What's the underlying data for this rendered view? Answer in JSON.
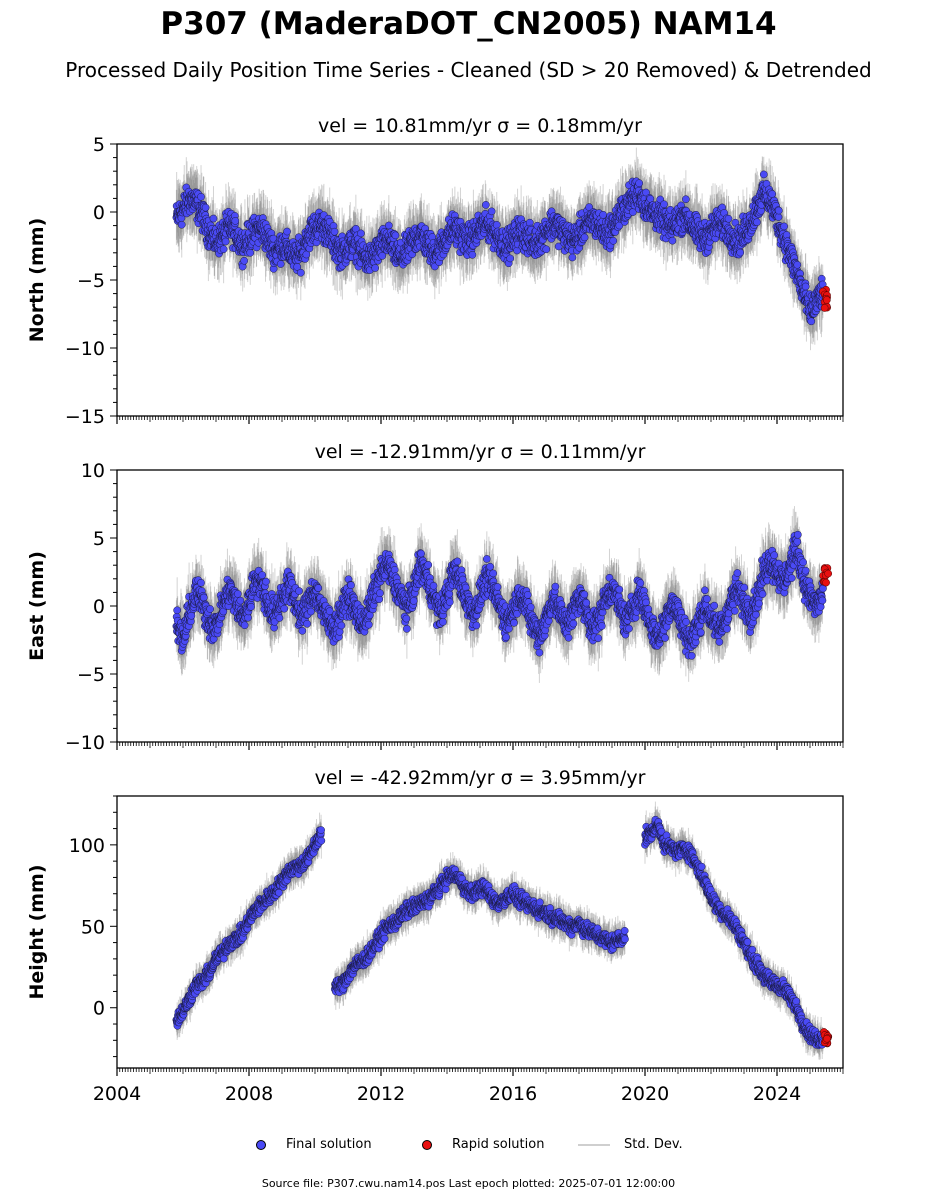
{
  "figure": {
    "title": "P307 (MaderaDOT_CN2005) NAM14",
    "subtitle": "Processed Daily Position Time Series - Cleaned (SD > 20 Removed) & Detrended",
    "footer": "Source file: P307.cwu.nam14.pos  Last epoch plotted: 2025-07-01 12:00:00"
  },
  "legend": {
    "final": "Final solution",
    "rapid": "Rapid solution",
    "std": "Std. Dev."
  },
  "colors": {
    "final": "#4a4af5",
    "rapid": "#e81010",
    "std": "#808080"
  },
  "chart_data": [
    {
      "type": "scatter",
      "title": "vel = 10.81mm/yr   σ = 0.18mm/yr",
      "ylabel": "North (mm)",
      "xlim": [
        2004.0,
        2026.0
      ],
      "ylim": [
        -15,
        5
      ],
      "yticks": [
        -15,
        -10,
        -5,
        0,
        5
      ],
      "xticks": [
        2004,
        2008,
        2012,
        2016,
        2020,
        2024
      ],
      "xtick_labels": [],
      "series": [
        {
          "name": "Final solution",
          "x": [
            2005.8,
            2006.0,
            2006.2,
            2006.4,
            2006.6,
            2006.8,
            2007.0,
            2007.2,
            2007.4,
            2007.6,
            2007.8,
            2008.0,
            2008.2,
            2008.4,
            2008.6,
            2008.8,
            2009.0,
            2009.2,
            2009.4,
            2009.6,
            2009.8,
            2010.0,
            2010.2,
            2010.4,
            2010.6,
            2010.8,
            2011.0,
            2011.2,
            2011.4,
            2011.6,
            2011.8,
            2012.0,
            2012.2,
            2012.4,
            2012.6,
            2012.8,
            2013.0,
            2013.2,
            2013.4,
            2013.6,
            2013.8,
            2014.0,
            2014.2,
            2014.4,
            2014.6,
            2014.8,
            2015.0,
            2015.2,
            2015.4,
            2015.6,
            2015.8,
            2016.0,
            2016.2,
            2016.4,
            2016.6,
            2016.8,
            2017.0,
            2017.2,
            2017.4,
            2017.6,
            2017.8,
            2018.0,
            2018.2,
            2018.4,
            2018.6,
            2018.8,
            2019.0,
            2019.2,
            2019.4,
            2019.6,
            2019.8,
            2020.0,
            2020.2,
            2020.4,
            2020.6,
            2020.8,
            2021.0,
            2021.2,
            2021.4,
            2021.6,
            2021.8,
            2022.0,
            2022.2,
            2022.4,
            2022.6,
            2022.8,
            2023.0,
            2023.2,
            2023.4,
            2023.6,
            2023.8,
            2024.0,
            2024.2,
            2024.4,
            2024.6,
            2024.8,
            2025.0,
            2025.2,
            2025.4
          ],
          "y": [
            -0.5,
            0.2,
            1.0,
            0.6,
            -0.3,
            -1.5,
            -2.2,
            -1.8,
            -1.0,
            -1.6,
            -2.5,
            -2.0,
            -1.4,
            -1.2,
            -2.2,
            -3.0,
            -2.4,
            -2.8,
            -3.4,
            -3.0,
            -1.6,
            -1.2,
            -0.9,
            -1.5,
            -2.4,
            -3.0,
            -2.6,
            -2.2,
            -3.0,
            -3.6,
            -3.2,
            -2.5,
            -2.0,
            -2.8,
            -3.4,
            -2.8,
            -2.0,
            -1.6,
            -2.4,
            -3.0,
            -2.6,
            -1.8,
            -1.2,
            -1.6,
            -2.2,
            -1.8,
            -1.2,
            -0.8,
            -1.4,
            -2.0,
            -2.6,
            -2.0,
            -1.4,
            -1.8,
            -2.4,
            -2.0,
            -1.4,
            -0.8,
            -1.2,
            -1.8,
            -2.2,
            -1.6,
            -1.0,
            -0.6,
            -1.0,
            -1.6,
            -1.2,
            -0.4,
            0.4,
            1.0,
            1.4,
            0.6,
            0.0,
            -0.2,
            -0.8,
            -1.2,
            -0.6,
            -0.2,
            -0.9,
            -1.6,
            -2.0,
            -1.4,
            -0.8,
            -1.0,
            -1.6,
            -2.2,
            -1.6,
            -0.8,
            0.4,
            1.4,
            0.8,
            -0.4,
            -1.8,
            -3.2,
            -4.4,
            -6.0,
            -7.4,
            -6.6,
            -5.8
          ]
        },
        {
          "name": "Rapid solution",
          "x": [
            2025.45,
            2025.48,
            2025.5,
            2025.52
          ],
          "y": [
            -5.8,
            -6.4,
            -7.0,
            -6.2
          ]
        }
      ]
    },
    {
      "type": "scatter",
      "title": "vel = -12.91mm/yr   σ = 0.11mm/yr",
      "ylabel": "East (mm)",
      "xlim": [
        2004.0,
        2026.0
      ],
      "ylim": [
        -10,
        10
      ],
      "yticks": [
        -10,
        -5,
        0,
        5,
        10
      ],
      "xticks": [
        2004,
        2008,
        2012,
        2016,
        2020,
        2024
      ],
      "xtick_labels": [],
      "series": [
        {
          "name": "Final solution",
          "x": [
            2005.8,
            2006.0,
            2006.2,
            2006.4,
            2006.6,
            2006.8,
            2007.0,
            2007.2,
            2007.4,
            2007.6,
            2007.8,
            2008.0,
            2008.2,
            2008.4,
            2008.6,
            2008.8,
            2009.0,
            2009.2,
            2009.4,
            2009.6,
            2009.8,
            2010.0,
            2010.2,
            2010.4,
            2010.6,
            2010.8,
            2011.0,
            2011.2,
            2011.4,
            2011.6,
            2011.8,
            2012.0,
            2012.2,
            2012.4,
            2012.6,
            2012.8,
            2013.0,
            2013.2,
            2013.4,
            2013.6,
            2013.8,
            2014.0,
            2014.2,
            2014.4,
            2014.6,
            2014.8,
            2015.0,
            2015.2,
            2015.4,
            2015.6,
            2015.8,
            2016.0,
            2016.2,
            2016.4,
            2016.6,
            2016.8,
            2017.0,
            2017.2,
            2017.4,
            2017.6,
            2017.8,
            2018.0,
            2018.2,
            2018.4,
            2018.6,
            2018.8,
            2019.0,
            2019.2,
            2019.4,
            2019.6,
            2019.8,
            2020.0,
            2020.2,
            2020.4,
            2020.6,
            2020.8,
            2021.0,
            2021.2,
            2021.4,
            2021.6,
            2021.8,
            2022.0,
            2022.2,
            2022.4,
            2022.6,
            2022.8,
            2023.0,
            2023.2,
            2023.4,
            2023.6,
            2023.8,
            2024.0,
            2024.2,
            2024.4,
            2024.6,
            2024.8,
            2025.0,
            2025.2,
            2025.4
          ],
          "y": [
            -1.5,
            -2.5,
            -0.5,
            1.0,
            0.2,
            -1.2,
            -1.6,
            0.0,
            1.2,
            0.4,
            -1.0,
            0.2,
            2.2,
            1.4,
            0.0,
            -0.6,
            0.6,
            1.6,
            0.4,
            -0.8,
            0.2,
            1.2,
            0.0,
            -1.2,
            -1.6,
            -0.4,
            0.8,
            -0.2,
            -1.4,
            -0.6,
            1.0,
            2.4,
            3.0,
            1.8,
            0.6,
            -0.2,
            1.2,
            3.2,
            2.0,
            0.6,
            -0.6,
            0.8,
            2.6,
            1.8,
            0.4,
            -0.6,
            0.6,
            2.2,
            1.2,
            0.0,
            -1.2,
            -0.4,
            1.0,
            0.0,
            -1.4,
            -2.2,
            -1.0,
            0.6,
            -0.4,
            -1.4,
            -0.6,
            0.8,
            -0.2,
            -1.6,
            -1.0,
            0.6,
            1.4,
            0.2,
            -1.2,
            -0.4,
            1.0,
            0.0,
            -1.6,
            -2.4,
            -1.2,
            0.4,
            -0.6,
            -2.0,
            -2.6,
            -1.4,
            0.0,
            -0.8,
            -1.8,
            -1.2,
            0.4,
            1.2,
            0.2,
            -0.6,
            0.6,
            2.4,
            3.4,
            2.6,
            1.6,
            3.0,
            4.4,
            2.0,
            0.6,
            0.0,
            1.0
          ]
        },
        {
          "name": "Rapid solution",
          "x": [
            2025.45,
            2025.48,
            2025.5,
            2025.52
          ],
          "y": [
            2.0,
            2.8,
            1.8,
            2.4
          ]
        }
      ]
    },
    {
      "type": "scatter",
      "title": "vel = -42.92mm/yr   σ = 3.95mm/yr",
      "ylabel": "Height (mm)",
      "xlim": [
        2004.0,
        2026.0
      ],
      "ylim": [
        -37,
        130
      ],
      "yticks": [
        0,
        50,
        100
      ],
      "xticks": [
        2004,
        2008,
        2012,
        2016,
        2020,
        2024
      ],
      "xtick_labels": [
        "2004",
        "2008",
        "2012",
        "2016",
        "2020",
        "2024"
      ],
      "series": [
        {
          "name": "Final solution",
          "x": [
            2005.8,
            2006.0,
            2006.2,
            2006.4,
            2006.6,
            2006.8,
            2007.0,
            2007.2,
            2007.4,
            2007.6,
            2007.8,
            2008.0,
            2008.2,
            2008.4,
            2008.6,
            2008.8,
            2009.0,
            2009.2,
            2009.4,
            2009.6,
            2009.8,
            2010.0,
            2010.2,
            2010.4,
            2010.6,
            2010.8,
            2011.0,
            2011.2,
            2011.4,
            2011.6,
            2011.8,
            2012.0,
            2012.2,
            2012.4,
            2012.6,
            2012.8,
            2013.0,
            2013.2,
            2013.4,
            2013.6,
            2013.8,
            2014.0,
            2014.2,
            2014.4,
            2014.6,
            2014.8,
            2015.0,
            2015.2,
            2015.4,
            2015.6,
            2015.8,
            2016.0,
            2016.2,
            2016.4,
            2016.6,
            2016.8,
            2017.0,
            2017.2,
            2017.4,
            2017.6,
            2017.8,
            2018.0,
            2018.2,
            2018.4,
            2018.6,
            2018.8,
            2019.0,
            2019.2,
            2019.4,
            2019.6,
            2019.8,
            2020.0,
            2020.2,
            2020.4,
            2020.6,
            2020.8,
            2021.0,
            2021.2,
            2021.4,
            2021.6,
            2021.8,
            2022.0,
            2022.2,
            2022.4,
            2022.6,
            2022.8,
            2023.0,
            2023.2,
            2023.4,
            2023.6,
            2023.8,
            2024.0,
            2024.2,
            2024.4,
            2024.6,
            2024.8,
            2025.0,
            2025.2,
            2025.4
          ],
          "y": [
            -8,
            -2,
            6,
            14,
            16,
            22,
            30,
            34,
            40,
            42,
            46,
            54,
            60,
            64,
            68,
            72,
            78,
            84,
            86,
            88,
            92,
            100,
            108,
            null,
            12,
            14,
            20,
            26,
            28,
            32,
            38,
            44,
            50,
            52,
            56,
            60,
            62,
            64,
            66,
            70,
            74,
            80,
            82,
            78,
            72,
            70,
            74,
            72,
            66,
            64,
            68,
            70,
            66,
            64,
            62,
            60,
            58,
            56,
            54,
            52,
            50,
            52,
            48,
            46,
            44,
            42,
            40,
            42,
            44,
            null,
            null,
            104,
            108,
            112,
            100,
            98,
            96,
            98,
            94,
            86,
            78,
            68,
            62,
            58,
            54,
            48,
            40,
            32,
            26,
            20,
            16,
            14,
            12,
            6,
            0,
            -10,
            -16,
            -20,
            -18
          ],
          "gap_x": [
            2010.3,
            2010.45,
            2019.6,
            2019.85
          ]
        },
        {
          "name": "Rapid solution",
          "x": [
            2025.45,
            2025.48,
            2025.5,
            2025.52
          ],
          "y": [
            -16,
            -22,
            -18,
            -20
          ]
        }
      ]
    }
  ]
}
